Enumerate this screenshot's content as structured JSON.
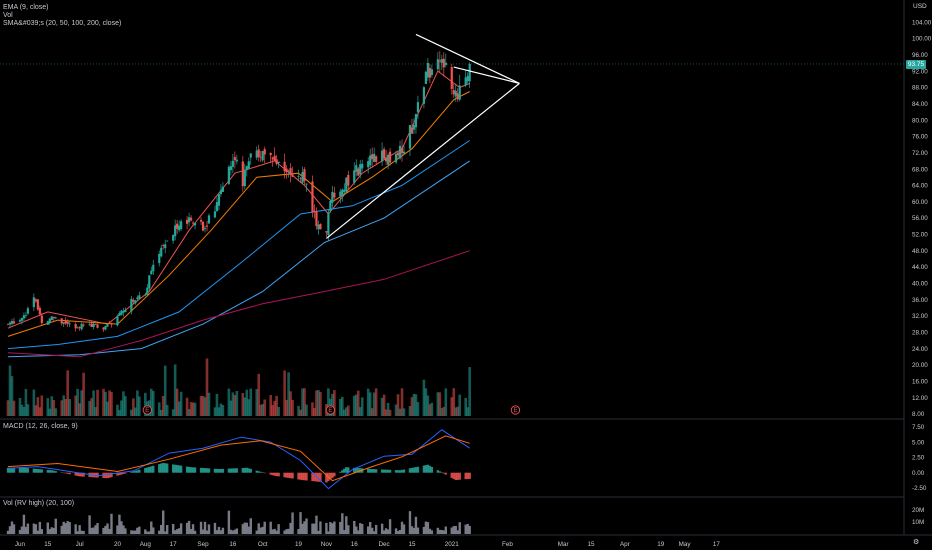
{
  "header": {
    "legend_lines": [
      "EMA (9, close)",
      "Vol",
      "SMA&#039;s (20, 50, 100, 200, close)"
    ]
  },
  "currency": "USD",
  "settings_icon": "gear-icon",
  "last_price_label": "93.75",
  "colors": {
    "up": "#26a69a",
    "down": "#ef5350",
    "ema9": "#ef5350",
    "sma20": "#f57c00",
    "sma50": "#ff9800",
    "sma100": "#2196f3",
    "sma200": "#ad1457",
    "macd": "#2962ff",
    "signal": "#ff6d00",
    "trendline": "#ffffff",
    "rvol": "#787b86"
  },
  "chart_data": [
    {
      "type": "candlestick",
      "panel": "price",
      "y_axis_ticks": [
        "104.00",
        "100.00",
        "96.00",
        "92.00",
        "88.00",
        "84.00",
        "80.00",
        "76.00",
        "72.00",
        "68.00",
        "64.00",
        "60.00",
        "56.00",
        "52.00",
        "48.00",
        "44.00",
        "40.00",
        "36.00",
        "32.00",
        "28.00",
        "24.00",
        "20.00",
        "16.00",
        "12.00",
        "8.00"
      ],
      "x_axis_ticks": [
        "Jun",
        "15",
        "Jul",
        "20",
        "Aug",
        "17",
        "Sep",
        "16",
        "Oct",
        "19",
        "Nov",
        "16",
        "Dec",
        "15",
        "2021",
        "Feb",
        "Mar",
        "15",
        "Apr",
        "19",
        "May",
        "17"
      ],
      "ylim": [
        7,
        106
      ],
      "last_price": 93.75,
      "earnings_markers": [
        {
          "date": "2020-08-04",
          "label": "E"
        },
        {
          "date": "2020-11-04",
          "label": "E"
        },
        {
          "date": "2021-02-05",
          "label": "E"
        }
      ],
      "trendlines": [
        {
          "from": [
            "2020-11-02",
            51
          ],
          "to": [
            "2021-02-07",
            89
          ]
        },
        {
          "from": [
            "2020-12-17",
            101
          ],
          "to": [
            "2021-02-07",
            89
          ]
        },
        {
          "from": [
            "2021-01-05",
            93
          ],
          "to": [
            "2021-02-07",
            89
          ]
        }
      ],
      "close_path": [
        [
          "2020-05-26",
          30
        ],
        [
          "2020-06-03",
          32
        ],
        [
          "2020-06-08",
          37
        ],
        [
          "2020-06-12",
          31
        ],
        [
          "2020-06-18",
          31.5
        ],
        [
          "2020-06-25",
          30
        ],
        [
          "2020-07-01",
          29.5
        ],
        [
          "2020-07-06",
          30
        ],
        [
          "2020-07-13",
          29
        ],
        [
          "2020-07-20",
          32
        ],
        [
          "2020-07-27",
          36
        ],
        [
          "2020-08-03",
          38
        ],
        [
          "2020-08-07",
          45
        ],
        [
          "2020-08-12",
          50
        ],
        [
          "2020-08-18",
          53
        ],
        [
          "2020-08-24",
          55
        ],
        [
          "2020-08-28",
          56
        ],
        [
          "2020-09-02",
          53
        ],
        [
          "2020-09-08",
          60
        ],
        [
          "2020-09-14",
          68
        ],
        [
          "2020-09-18",
          72
        ],
        [
          "2020-09-21",
          65
        ],
        [
          "2020-09-25",
          71
        ],
        [
          "2020-10-01",
          72
        ],
        [
          "2020-10-07",
          70
        ],
        [
          "2020-10-13",
          66
        ],
        [
          "2020-10-19",
          68
        ],
        [
          "2020-10-22",
          65
        ],
        [
          "2020-10-28",
          55
        ],
        [
          "2020-11-02",
          53
        ],
        [
          "2020-11-05",
          62
        ],
        [
          "2020-11-10",
          63
        ],
        [
          "2020-11-16",
          67
        ],
        [
          "2020-11-23",
          70
        ],
        [
          "2020-11-30",
          72
        ],
        [
          "2020-12-07",
          70
        ],
        [
          "2020-12-14",
          77
        ],
        [
          "2020-12-18",
          83
        ],
        [
          "2020-12-23",
          92
        ],
        [
          "2020-12-30",
          95
        ],
        [
          "2021-01-04",
          88
        ],
        [
          "2021-01-07",
          85
        ],
        [
          "2021-01-11",
          91
        ],
        [
          "2021-01-13",
          93.75
        ]
      ],
      "overlays": [
        {
          "name": "EMA 9",
          "color": "#ef5350",
          "points": [
            [
              "2020-05-26",
              29
            ],
            [
              "2020-06-15",
              33
            ],
            [
              "2020-07-15",
              30
            ],
            [
              "2020-08-05",
              38
            ],
            [
              "2020-08-25",
              53
            ],
            [
              "2020-09-17",
              67
            ],
            [
              "2020-10-07",
              70
            ],
            [
              "2020-10-22",
              64
            ],
            [
              "2020-11-03",
              57
            ],
            [
              "2020-11-20",
              67
            ],
            [
              "2020-12-10",
              73
            ],
            [
              "2020-12-28",
              92
            ],
            [
              "2021-01-08",
              88
            ],
            [
              "2021-01-13",
              89
            ]
          ]
        },
        {
          "name": "SMA 20",
          "color": "#f57c00",
          "points": [
            [
              "2020-05-26",
              27
            ],
            [
              "2020-06-20",
              31
            ],
            [
              "2020-07-20",
              30
            ],
            [
              "2020-08-15",
              42
            ],
            [
              "2020-09-05",
              53
            ],
            [
              "2020-09-28",
              66
            ],
            [
              "2020-10-19",
              67
            ],
            [
              "2020-11-05",
              60
            ],
            [
              "2020-11-25",
              66
            ],
            [
              "2020-12-15",
              73
            ],
            [
              "2021-01-05",
              85
            ],
            [
              "2021-01-13",
              87
            ]
          ]
        },
        {
          "name": "SMA 50",
          "color": "#2196f3",
          "points": [
            [
              "2020-05-26",
              24
            ],
            [
              "2020-06-20",
              25
            ],
            [
              "2020-07-20",
              27
            ],
            [
              "2020-08-20",
              33
            ],
            [
              "2020-09-20",
              45
            ],
            [
              "2020-10-20",
              57
            ],
            [
              "2020-11-15",
              59
            ],
            [
              "2020-12-10",
              64
            ],
            [
              "2021-01-13",
              75
            ]
          ]
        },
        {
          "name": "SMA 100",
          "color": "#42a5f5",
          "points": [
            [
              "2020-05-26",
              22
            ],
            [
              "2020-07-01",
              22.5
            ],
            [
              "2020-08-01",
              24
            ],
            [
              "2020-09-01",
              30
            ],
            [
              "2020-10-01",
              38
            ],
            [
              "2020-11-01",
              50
            ],
            [
              "2020-12-01",
              56
            ],
            [
              "2021-01-13",
              70
            ]
          ]
        },
        {
          "name": "SMA 200",
          "color": "#ad1457",
          "points": [
            [
              "2020-05-26",
              23
            ],
            [
              "2020-07-01",
              22
            ],
            [
              "2020-08-01",
              26
            ],
            [
              "2020-09-01",
              31
            ],
            [
              "2020-10-01",
              35
            ],
            [
              "2020-11-01",
              38
            ],
            [
              "2020-12-01",
              41
            ],
            [
              "2021-01-13",
              48
            ]
          ]
        }
      ]
    },
    {
      "type": "line",
      "panel": "MACD",
      "legend": "MACD (12, 26, close, 9)",
      "y_axis_ticks": [
        "7.50",
        "5.00",
        "2.50",
        "0.00",
        "-2.50"
      ],
      "ylim": [
        -3.8,
        8.6
      ],
      "series": [
        {
          "name": "MACD",
          "color": "#2962ff",
          "points": [
            [
              "2020-05-26",
              0.7
            ],
            [
              "2020-06-10",
              1.0
            ],
            [
              "2020-07-10",
              -0.5
            ],
            [
              "2020-07-28",
              0.3
            ],
            [
              "2020-08-15",
              3.2
            ],
            [
              "2020-09-01",
              4.0
            ],
            [
              "2020-09-20",
              5.8
            ],
            [
              "2020-10-05",
              5.0
            ],
            [
              "2020-10-20",
              2.0
            ],
            [
              "2020-11-03",
              -2.6
            ],
            [
              "2020-11-15",
              0.5
            ],
            [
              "2020-12-01",
              2.7
            ],
            [
              "2020-12-15",
              3.0
            ],
            [
              "2020-12-30",
              7.0
            ],
            [
              "2021-01-13",
              4.0
            ]
          ]
        },
        {
          "name": "Signal",
          "color": "#ff6d00",
          "points": [
            [
              "2020-05-26",
              1.0
            ],
            [
              "2020-06-20",
              1.5
            ],
            [
              "2020-07-20",
              0.2
            ],
            [
              "2020-08-15",
              2.2
            ],
            [
              "2020-09-10",
              4.5
            ],
            [
              "2020-09-30",
              5.2
            ],
            [
              "2020-10-20",
              3.5
            ],
            [
              "2020-11-05",
              -1.3
            ],
            [
              "2020-11-25",
              1.0
            ],
            [
              "2020-12-10",
              2.6
            ],
            [
              "2021-01-01",
              6.0
            ],
            [
              "2021-01-13",
              4.8
            ]
          ]
        }
      ],
      "histogram": [
        [
          "2020-06-03",
          0.8
        ],
        [
          "2020-06-17",
          0.4
        ],
        [
          "2020-07-01",
          -0.6
        ],
        [
          "2020-07-15",
          -0.9
        ],
        [
          "2020-07-29",
          0.3
        ],
        [
          "2020-08-12",
          1.6
        ],
        [
          "2020-08-26",
          0.9
        ],
        [
          "2020-09-09",
          0.6
        ],
        [
          "2020-09-23",
          0.8
        ],
        [
          "2020-10-07",
          -0.5
        ],
        [
          "2020-10-21",
          -1.2
        ],
        [
          "2020-11-02",
          -1.6
        ],
        [
          "2020-11-12",
          0.9
        ],
        [
          "2020-11-25",
          0.6
        ],
        [
          "2020-12-09",
          0.4
        ],
        [
          "2020-12-23",
          1.3
        ],
        [
          "2021-01-06",
          -1.2
        ],
        [
          "2021-01-13",
          -1.0
        ]
      ]
    },
    {
      "type": "bar",
      "panel": "RVOL",
      "legend": "Vol (RV high) (20, 100)",
      "y_axis_ticks": [
        "20M",
        "10M"
      ],
      "ylim": [
        0,
        30
      ]
    }
  ]
}
